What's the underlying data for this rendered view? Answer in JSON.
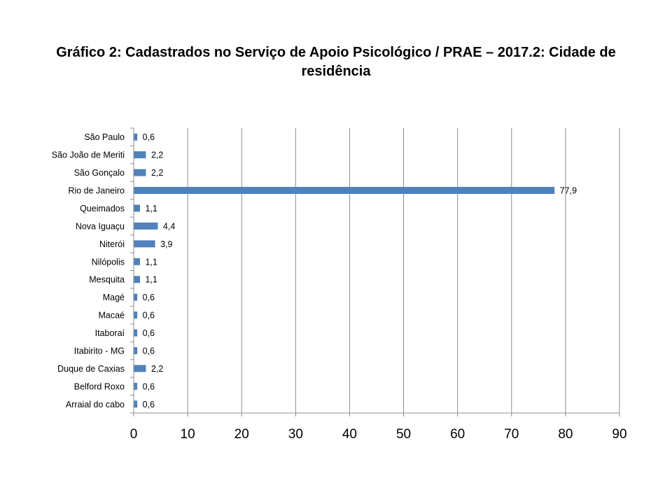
{
  "chart_data": {
    "type": "bar",
    "orientation": "horizontal",
    "title": "Gráfico 2: Cadastrados no Serviço de Apoio Psicológico / PRAE – 2017.2: Cidade de residência",
    "categories": [
      "São Paulo",
      "São João de Meriti",
      "São Gonçalo",
      "Rio de Janeiro",
      "Queimados",
      "Nova Iguaçu",
      "Niterói",
      "Nilópolis",
      "Mesquita",
      "Magé",
      "Macaé",
      "Itaboraí",
      "Itabirito - MG",
      "Duque de Caxias",
      "Belford Roxo",
      "Arraial do cabo"
    ],
    "values": [
      0.6,
      2.2,
      2.2,
      77.9,
      1.1,
      4.4,
      3.9,
      1.1,
      1.1,
      0.6,
      0.6,
      0.6,
      0.6,
      2.2,
      0.6,
      0.6
    ],
    "data_labels": [
      "0,6",
      "2,2",
      "2,2",
      "77,9",
      "1,1",
      "4,4",
      "3,9",
      "1,1",
      "1,1",
      "0,6",
      "0,6",
      "0,6",
      "0,6",
      "2,2",
      "0,6",
      "0,6"
    ],
    "xticks": [
      "0",
      "10",
      "20",
      "30",
      "40",
      "50",
      "60",
      "70",
      "80",
      "90"
    ],
    "xlim": [
      0,
      90
    ],
    "xlabel": "",
    "ylabel": "",
    "grid": "vertical",
    "legend": "none",
    "bar_color": "#4F81BD",
    "grid_color": "#8c8c8c"
  }
}
